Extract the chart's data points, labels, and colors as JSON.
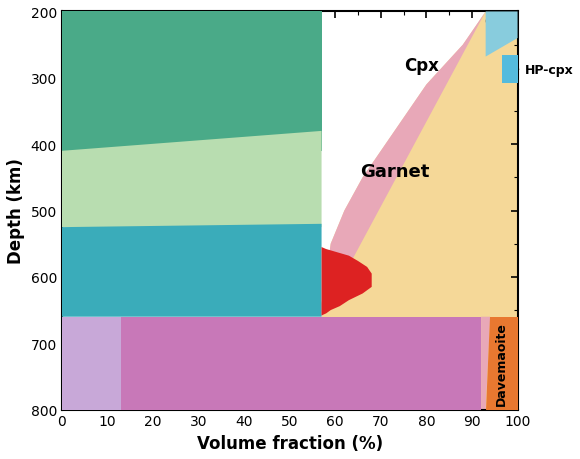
{
  "xlabel": "Volume fraction (%)",
  "ylabel": "Depth (km)",
  "xlim": [
    0,
    100
  ],
  "ylim": [
    800,
    200
  ],
  "xticks": [
    0,
    10,
    20,
    30,
    40,
    50,
    60,
    70,
    80,
    90,
    100
  ],
  "yticks": [
    200,
    300,
    400,
    500,
    600,
    700,
    800
  ],
  "colors": {
    "olivine": "#4aaa88",
    "wadsleyite": "#b8ddb0",
    "ringwoodite": "#3aacba",
    "fp": "#c8a8d8",
    "bridgmanite": "#c878b8",
    "garnet": "#e8a8b8",
    "cpx": "#f5d898",
    "opx": "#88ccdd",
    "hp_cpx": "#55bbdd",
    "aki": "#dd2222",
    "davemaoite": "#e87830"
  }
}
